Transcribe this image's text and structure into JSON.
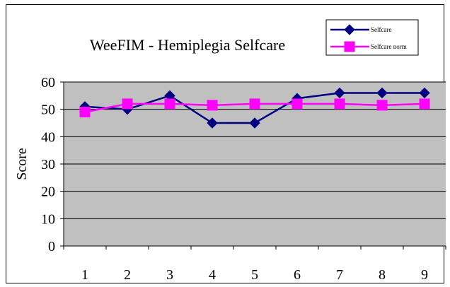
{
  "chart_data": {
    "type": "line",
    "title": "WeeFIM - Hemiplegia Selfcare",
    "xlabel": "",
    "ylabel": "Score",
    "categories": [
      "1",
      "2",
      "3",
      "4",
      "5",
      "6",
      "7",
      "8",
      "9"
    ],
    "ylim": [
      0,
      60
    ],
    "yticks": [
      "0",
      "10",
      "20",
      "30",
      "40",
      "50",
      "60"
    ],
    "grid": true,
    "legend_position": "top-right",
    "plot_background": "#C0C0C0",
    "series": [
      {
        "name": "Selfcare",
        "values": [
          51,
          50,
          55,
          45,
          45,
          54,
          56,
          56,
          56
        ],
        "color": "#000080",
        "marker": "diamond"
      },
      {
        "name": "Selfcare norm",
        "values": [
          49,
          52,
          52,
          51.5,
          52,
          52,
          52,
          51.5,
          52
        ],
        "color": "#FF00FF",
        "marker": "square"
      }
    ]
  }
}
